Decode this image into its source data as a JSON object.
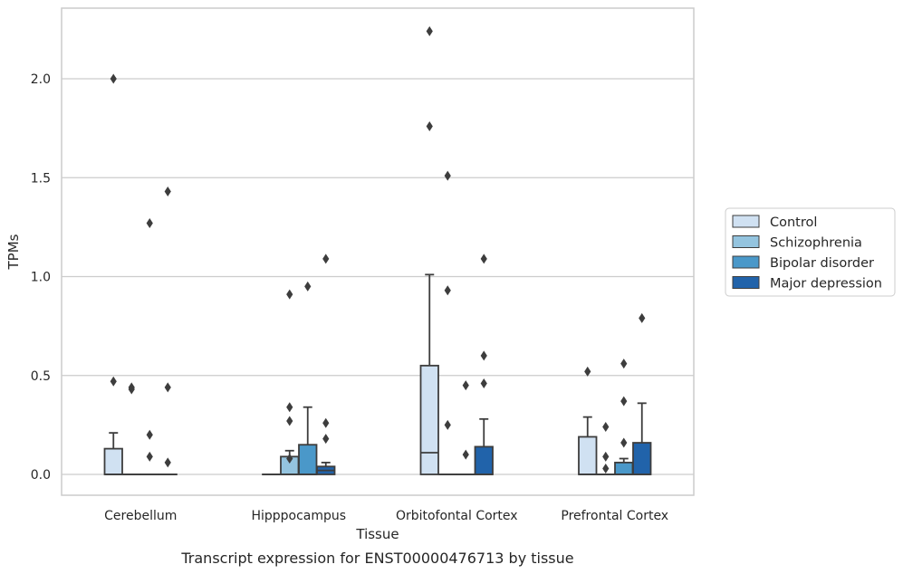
{
  "chart_data": {
    "type": "boxplot",
    "caption": "Transcript expression for ENST00000476713 by tissue",
    "xlabel": "Tissue",
    "ylabel": "TPMs",
    "ylim": [
      -0.11,
      2.36
    ],
    "yticks": [
      0.0,
      0.5,
      1.0,
      1.5,
      2.0
    ],
    "ytick_labels": [
      "0.0",
      "0.5",
      "1.0",
      "1.5",
      "2.0"
    ],
    "grid": "horizontal",
    "legend_position": "right",
    "categories": [
      "Cerebellum",
      "Hipppocampus",
      "Orbitofontal Cortex",
      "Prefrontal Cortex"
    ],
    "series": [
      {
        "name": "Control",
        "color": "#d0e1f2",
        "boxes": [
          {
            "q1": 0.0,
            "median": 0.0,
            "q3": 0.13,
            "whislo": 0.0,
            "whishi": 0.21,
            "fliers": [
              0.47,
              2.0
            ]
          },
          {
            "q1": 0.0,
            "median": 0.0,
            "q3": 0.0,
            "whislo": 0.0,
            "whishi": 0.0,
            "fliers": []
          },
          {
            "q1": 0.0,
            "median": 0.11,
            "q3": 0.55,
            "whislo": 0.0,
            "whishi": 1.01,
            "fliers": [
              1.76,
              2.24
            ]
          },
          {
            "q1": 0.0,
            "median": 0.0,
            "q3": 0.19,
            "whislo": 0.0,
            "whishi": 0.29,
            "fliers": [
              0.52
            ]
          }
        ]
      },
      {
        "name": "Schizophrenia",
        "color": "#94c4df",
        "boxes": [
          {
            "q1": 0.0,
            "median": 0.0,
            "q3": 0.0,
            "whislo": 0.0,
            "whishi": 0.0,
            "fliers": [
              0.43,
              0.44
            ]
          },
          {
            "q1": 0.0,
            "median": 0.0,
            "q3": 0.09,
            "whislo": 0.0,
            "whishi": 0.12,
            "fliers": [
              0.08,
              0.27,
              0.34,
              0.91
            ]
          },
          {
            "q1": 0.0,
            "median": 0.0,
            "q3": 0.0,
            "whislo": 0.0,
            "whishi": 0.0,
            "fliers": [
              0.25,
              0.93,
              1.51
            ]
          },
          {
            "q1": 0.0,
            "median": 0.0,
            "q3": 0.0,
            "whislo": 0.0,
            "whishi": 0.0,
            "fliers": [
              0.03,
              0.09,
              0.24
            ]
          }
        ]
      },
      {
        "name": "Bipolar disorder",
        "color": "#4a98c9",
        "boxes": [
          {
            "q1": 0.0,
            "median": 0.0,
            "q3": 0.0,
            "whislo": 0.0,
            "whishi": 0.0,
            "fliers": [
              0.09,
              0.2,
              1.27
            ]
          },
          {
            "q1": 0.0,
            "median": 0.0,
            "q3": 0.15,
            "whislo": 0.0,
            "whishi": 0.34,
            "fliers": [
              0.95
            ]
          },
          {
            "q1": 0.0,
            "median": 0.0,
            "q3": 0.0,
            "whislo": 0.0,
            "whishi": 0.0,
            "fliers": [
              0.1,
              0.45
            ]
          },
          {
            "q1": 0.0,
            "median": 0.0,
            "q3": 0.06,
            "whislo": 0.0,
            "whishi": 0.08,
            "fliers": [
              0.16,
              0.37,
              0.56
            ]
          }
        ]
      },
      {
        "name": "Major depression",
        "color": "#2163aa",
        "boxes": [
          {
            "q1": 0.0,
            "median": 0.0,
            "q3": 0.0,
            "whislo": 0.0,
            "whishi": 0.0,
            "fliers": [
              0.06,
              0.44,
              1.43
            ]
          },
          {
            "q1": 0.0,
            "median": 0.02,
            "q3": 0.04,
            "whislo": 0.0,
            "whishi": 0.06,
            "fliers": [
              0.18,
              0.26,
              1.09
            ]
          },
          {
            "q1": 0.0,
            "median": 0.0,
            "q3": 0.14,
            "whislo": 0.0,
            "whishi": 0.28,
            "fliers": [
              0.46,
              0.6,
              1.09
            ]
          },
          {
            "q1": 0.0,
            "median": 0.0,
            "q3": 0.16,
            "whislo": 0.0,
            "whishi": 0.36,
            "fliers": [
              0.79
            ]
          }
        ]
      }
    ]
  }
}
